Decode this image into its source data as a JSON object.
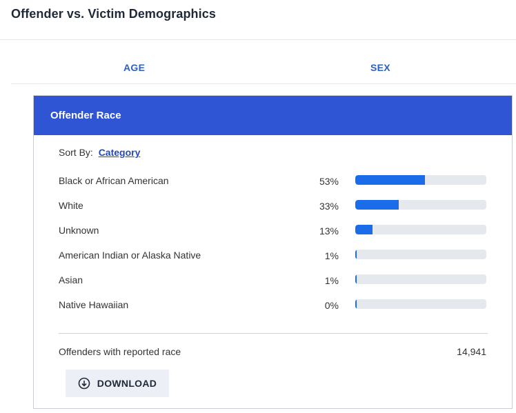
{
  "header": {
    "title": "Offender vs. Victim Demographics"
  },
  "tabs": [
    {
      "label": "AGE"
    },
    {
      "label": "SEX"
    }
  ],
  "card": {
    "title": "Offender Race",
    "sort": {
      "prefix": "Sort By:",
      "value": "Category"
    },
    "rows": [
      {
        "label": "Black or African American",
        "percent_text": "53%",
        "fraction": 0.53
      },
      {
        "label": "White",
        "percent_text": "33%",
        "fraction": 0.33
      },
      {
        "label": "Unknown",
        "percent_text": "13%",
        "fraction": 0.13
      },
      {
        "label": "American Indian or Alaska Native",
        "percent_text": "1%",
        "fraction": 0.01
      },
      {
        "label": "Asian",
        "percent_text": "1%",
        "fraction": 0.01
      },
      {
        "label": "Native Hawaiian",
        "percent_text": "0%",
        "fraction": 0.0
      }
    ],
    "summary": {
      "label": "Offenders with reported race",
      "value": "14,941"
    },
    "download": {
      "label": "DOWNLOAD",
      "icon": "download-icon"
    }
  },
  "colors": {
    "header_bg": "#2f55d4",
    "bar_fill": "#1a6ce8",
    "bar_track": "#e5e8ed",
    "tab_text": "#2d5fc0",
    "link": "#2349b5"
  }
}
